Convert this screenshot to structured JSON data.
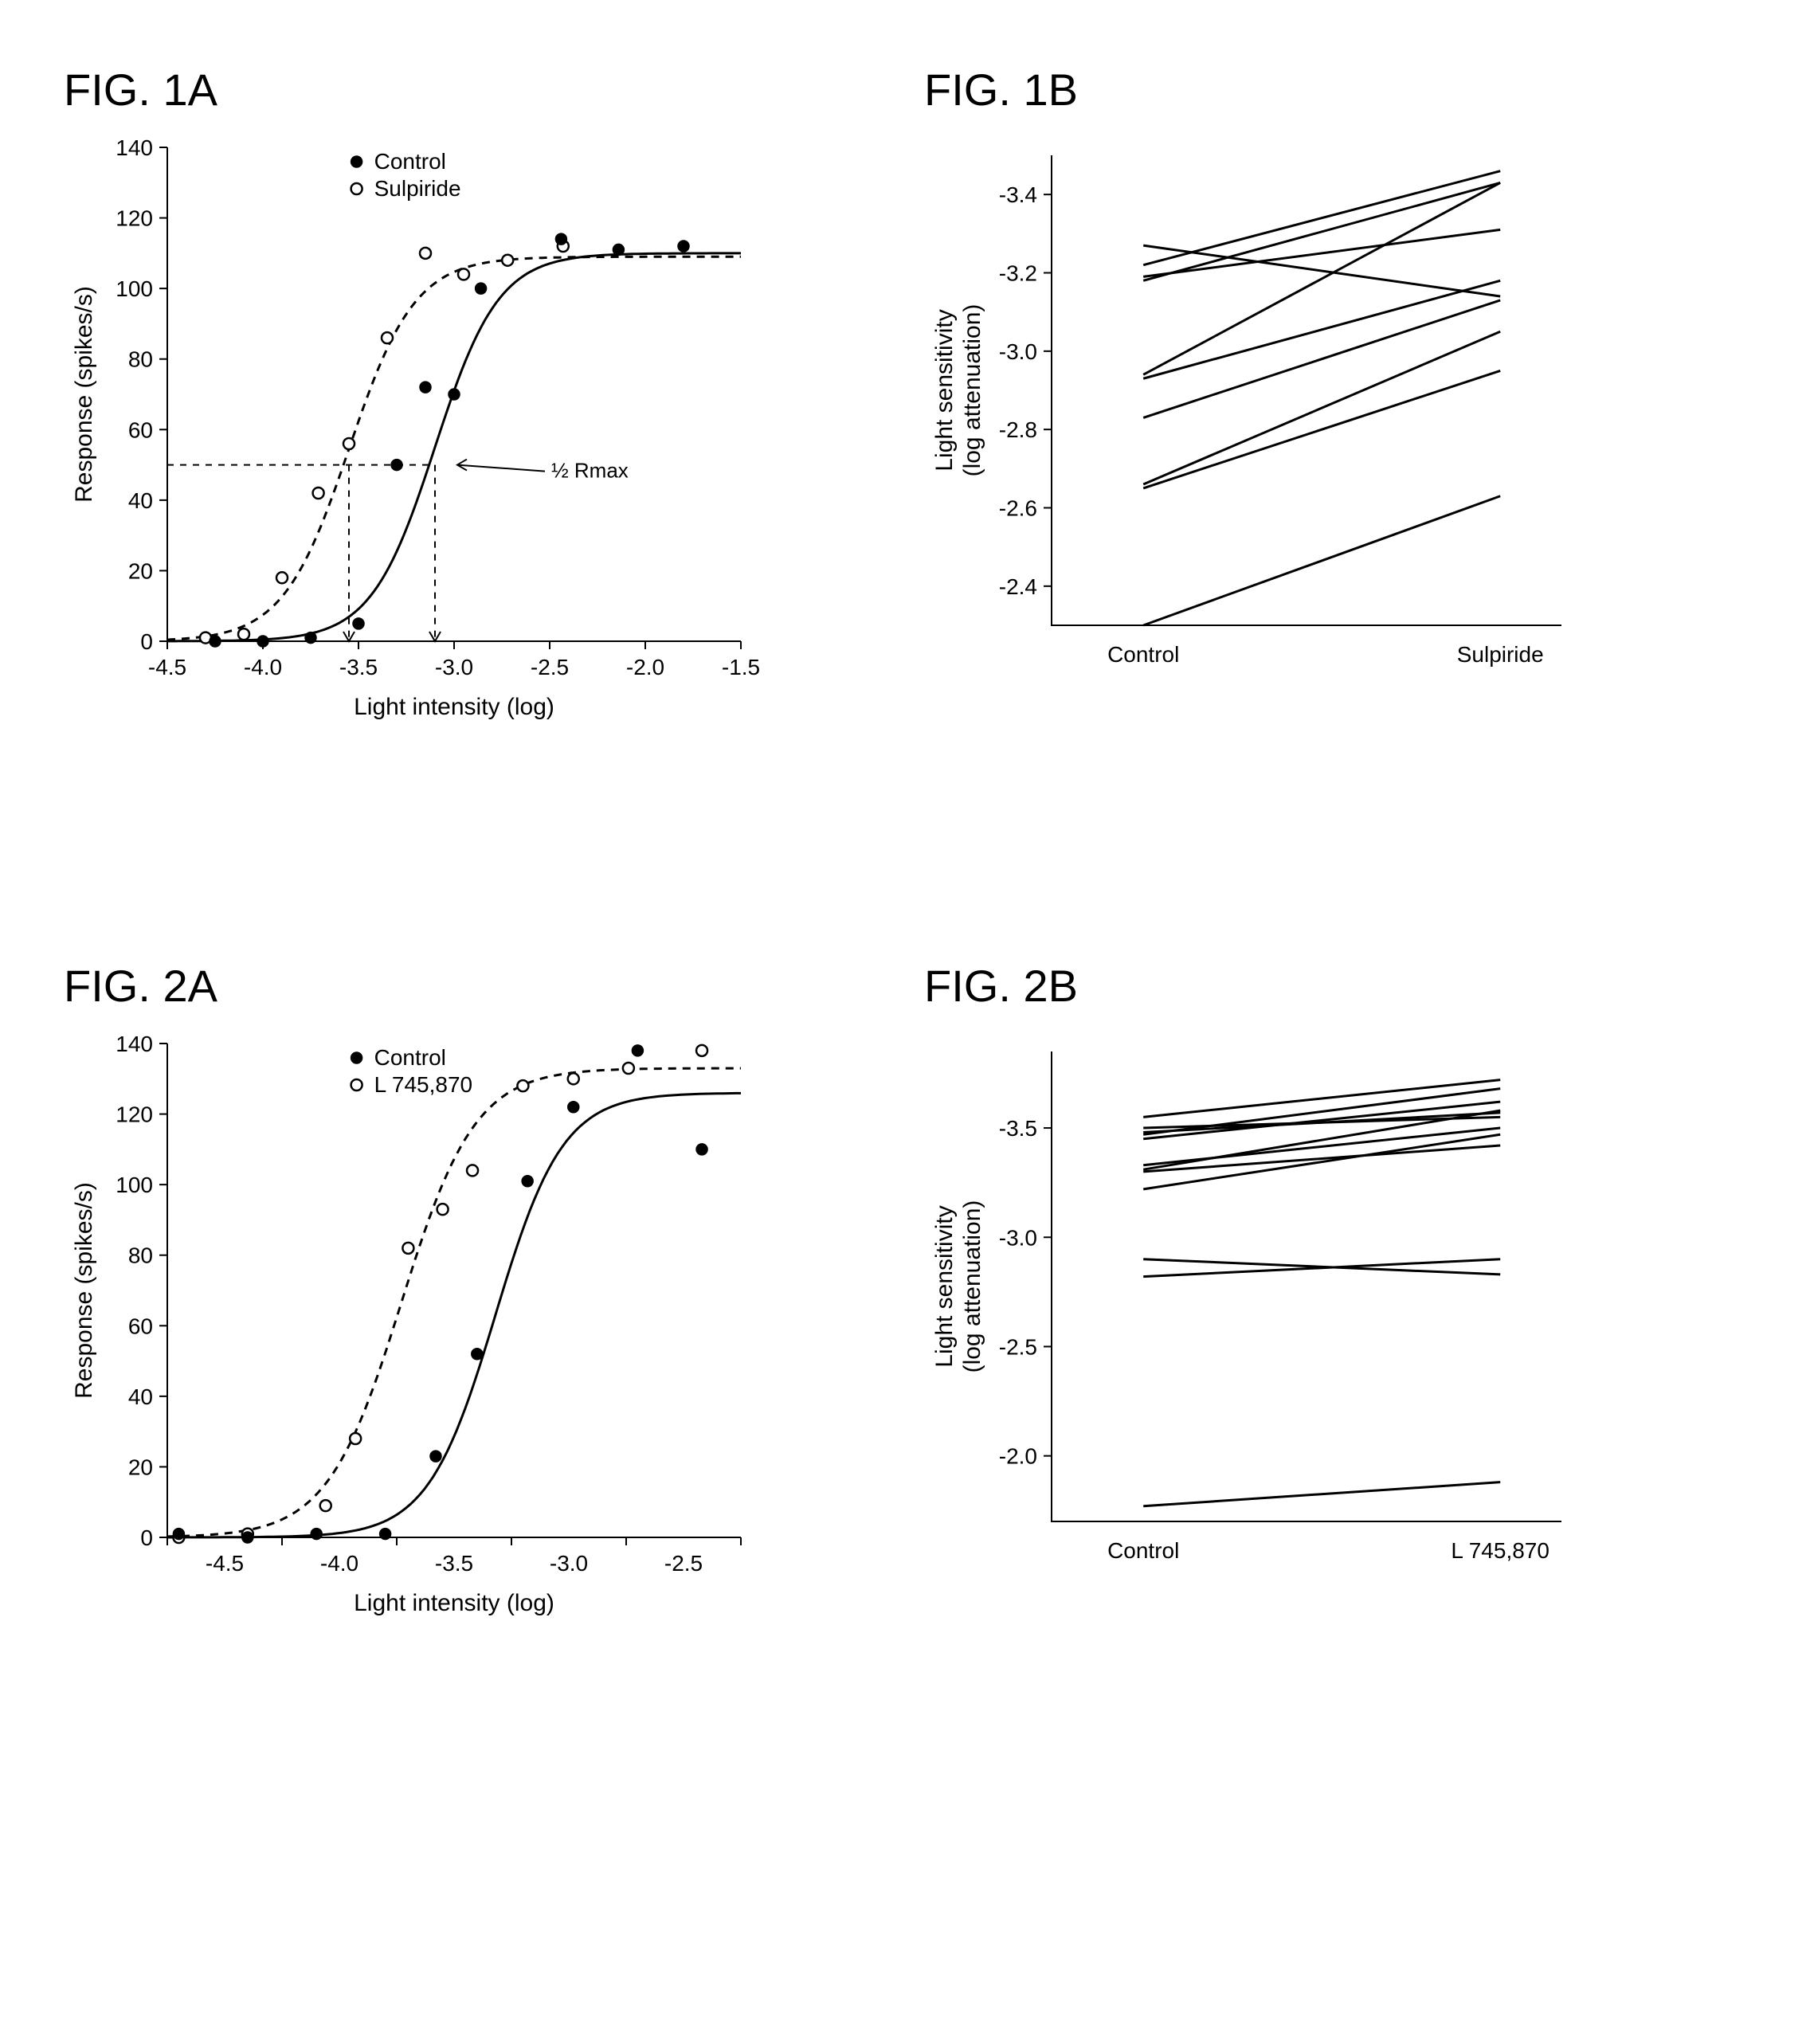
{
  "fig1a": {
    "title": "FIG. 1A",
    "type": "scatter+line",
    "xlabel": "Light intensity (log)",
    "ylabel": "Response (spikes/s)",
    "xlim": [
      -4.5,
      -1.5
    ],
    "ylim": [
      0,
      140
    ],
    "xtick_step": 0.5,
    "ytick_step": 20,
    "xticks": [
      "-4.5",
      "-4.0",
      "-3.5",
      "-3.0",
      "-2.5",
      "-2.0",
      "-1.5"
    ],
    "yticks": [
      "0",
      "20",
      "40",
      "60",
      "80",
      "100",
      "120",
      "140"
    ],
    "legend": [
      {
        "label": "Control",
        "marker": "filled"
      },
      {
        "label": "Sulpiride",
        "marker": "open"
      }
    ],
    "marker_radius": 7,
    "colors": {
      "line": "#000000",
      "bg": "#ffffff"
    },
    "control_points": [
      {
        "x": -4.25,
        "y": 0
      },
      {
        "x": -4.0,
        "y": 0
      },
      {
        "x": -3.75,
        "y": 1
      },
      {
        "x": -3.5,
        "y": 5
      },
      {
        "x": -3.3,
        "y": 50
      },
      {
        "x": -3.15,
        "y": 72
      },
      {
        "x": -3.0,
        "y": 70
      },
      {
        "x": -2.86,
        "y": 100
      },
      {
        "x": -2.44,
        "y": 114
      },
      {
        "x": -2.14,
        "y": 111
      },
      {
        "x": -1.8,
        "y": 112
      }
    ],
    "sulpiride_points": [
      {
        "x": -4.3,
        "y": 1
      },
      {
        "x": -4.1,
        "y": 2
      },
      {
        "x": -3.9,
        "y": 18
      },
      {
        "x": -3.71,
        "y": 42
      },
      {
        "x": -3.55,
        "y": 56
      },
      {
        "x": -3.35,
        "y": 86
      },
      {
        "x": -3.15,
        "y": 110
      },
      {
        "x": -2.95,
        "y": 104
      },
      {
        "x": -2.72,
        "y": 108
      },
      {
        "x": -2.43,
        "y": 112
      }
    ],
    "sigmoid_control": {
      "x50": -3.1,
      "k": 6.0,
      "ymax": 110
    },
    "sigmoid_sulpiride": {
      "x50": -3.55,
      "k": 5.8,
      "ymax": 109
    },
    "guide_y": 50,
    "guide_x1": -3.55,
    "guide_x2": -3.1,
    "annotation": "½ Rmax"
  },
  "fig1b": {
    "title": "FIG. 1B",
    "type": "paired-lines",
    "ylabel_line1": "Light sensitivity",
    "ylabel_line2": "(log attenuation)",
    "xcats": [
      "Control",
      "Sulpiride"
    ],
    "ylim": [
      -3.5,
      -2.3
    ],
    "y_direction": "reversed",
    "yticks": [
      "-3.4",
      "-3.2",
      "-3.0",
      "-2.8",
      "-2.6",
      "-2.4"
    ],
    "line_width": 2.5,
    "colors": {
      "line": "#000000",
      "bg": "#ffffff"
    },
    "pairs": [
      {
        "c": -2.3,
        "s": -2.63
      },
      {
        "c": -2.65,
        "s": -2.95
      },
      {
        "c": -2.66,
        "s": -3.05
      },
      {
        "c": -2.83,
        "s": -3.13
      },
      {
        "c": -2.93,
        "s": -3.18
      },
      {
        "c": -2.94,
        "s": -3.43
      },
      {
        "c": -3.18,
        "s": -3.43
      },
      {
        "c": -3.19,
        "s": -3.31
      },
      {
        "c": -3.22,
        "s": -3.46
      },
      {
        "c": -3.27,
        "s": -3.14
      }
    ]
  },
  "fig2a": {
    "title": "FIG. 2A",
    "type": "scatter+line",
    "xlabel": "Light intensity (log)",
    "ylabel": "Response (spikes/s)",
    "xlim": [
      -4.75,
      -2.25
    ],
    "ylim": [
      0,
      140
    ],
    "xtick_step": 0.5,
    "ytick_step": 20,
    "xticks": [
      "-4.5",
      "-4.0",
      "-3.5",
      "-3.0",
      "-2.5"
    ],
    "yticks": [
      "0",
      "20",
      "40",
      "60",
      "80",
      "100",
      "120",
      "140"
    ],
    "legend": [
      {
        "label": "Control",
        "marker": "filled"
      },
      {
        "label": "L 745,870",
        "marker": "open"
      }
    ],
    "marker_radius": 7,
    "colors": {
      "line": "#000000",
      "bg": "#ffffff"
    },
    "control_points": [
      {
        "x": -4.7,
        "y": 1
      },
      {
        "x": -4.4,
        "y": 0
      },
      {
        "x": -4.1,
        "y": 1
      },
      {
        "x": -3.8,
        "y": 1
      },
      {
        "x": -3.58,
        "y": 23
      },
      {
        "x": -3.4,
        "y": 52
      },
      {
        "x": -3.18,
        "y": 101
      },
      {
        "x": -2.98,
        "y": 122
      },
      {
        "x": -2.7,
        "y": 138
      },
      {
        "x": -2.42,
        "y": 110
      }
    ],
    "drug_points": [
      {
        "x": -4.7,
        "y": 0
      },
      {
        "x": -4.4,
        "y": 1
      },
      {
        "x": -4.06,
        "y": 9
      },
      {
        "x": -3.93,
        "y": 28
      },
      {
        "x": -3.7,
        "y": 82
      },
      {
        "x": -3.55,
        "y": 93
      },
      {
        "x": -3.42,
        "y": 104
      },
      {
        "x": -3.2,
        "y": 128
      },
      {
        "x": -2.98,
        "y": 130
      },
      {
        "x": -2.74,
        "y": 133
      },
      {
        "x": -2.42,
        "y": 138
      }
    ],
    "sigmoid_control": {
      "x50": -3.32,
      "k": 6.8,
      "ymax": 126
    },
    "sigmoid_drug": {
      "x50": -3.73,
      "k": 6.2,
      "ymax": 133
    }
  },
  "fig2b": {
    "title": "FIG. 2B",
    "type": "paired-lines",
    "ylabel_line1": "Light sensitivity",
    "ylabel_line2": "(log attenuation)",
    "xcats": [
      "Control",
      "L 745,870"
    ],
    "ylim": [
      -3.85,
      -1.7
    ],
    "y_direction": "reversed",
    "yticks": [
      "-3.5",
      "-3.0",
      "-2.5",
      "-2.0"
    ],
    "line_width": 2.5,
    "colors": {
      "line": "#000000",
      "bg": "#ffffff"
    },
    "pairs": [
      {
        "c": -1.77,
        "s": -1.88
      },
      {
        "c": -2.82,
        "s": -2.9
      },
      {
        "c": -2.9,
        "s": -2.83
      },
      {
        "c": -3.22,
        "s": -3.47
      },
      {
        "c": -3.3,
        "s": -3.42
      },
      {
        "c": -3.31,
        "s": -3.58
      },
      {
        "c": -3.33,
        "s": -3.5
      },
      {
        "c": -3.45,
        "s": -3.62
      },
      {
        "c": -3.47,
        "s": -3.68
      },
      {
        "c": -3.48,
        "s": -3.57
      },
      {
        "c": -3.5,
        "s": -3.55
      },
      {
        "c": -3.55,
        "s": -3.72
      }
    ]
  }
}
